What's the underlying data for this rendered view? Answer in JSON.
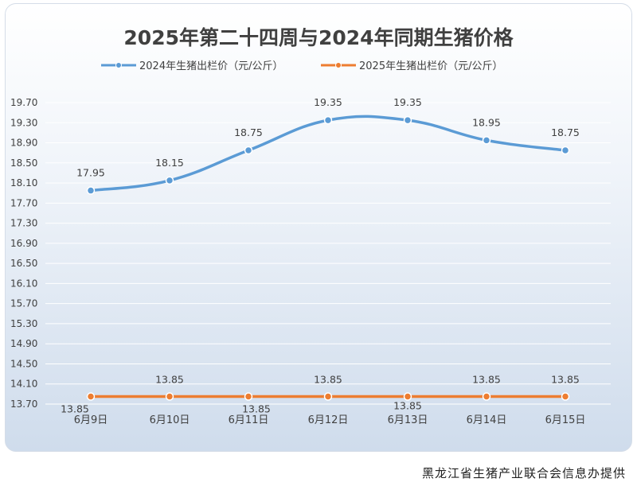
{
  "chart_data": {
    "type": "line",
    "title": "2025年第二十四周与2024年同期生猪价格",
    "categories": [
      "6月9日",
      "6月10日",
      "6月11日",
      "6月12日",
      "6月13日",
      "6月14日",
      "6月15日"
    ],
    "series": [
      {
        "name": "2024年生猪出栏价（元/公斤）",
        "color": "#5b9bd5",
        "values": [
          17.95,
          18.15,
          18.75,
          19.35,
          19.35,
          18.95,
          18.75
        ],
        "labels": [
          "17.95",
          "18.15",
          "18.75",
          "19.35",
          "19.35",
          "18.95",
          "18.75"
        ]
      },
      {
        "name": "2025年生猪出栏价（元/公斤）",
        "color": "#ed7d31",
        "values": [
          13.85,
          13.85,
          13.85,
          13.85,
          13.85,
          13.85,
          13.85
        ],
        "labels": [
          "13.85",
          "13.85",
          "13.85",
          "13.85",
          "13.85",
          "13.85",
          "13.85"
        ]
      }
    ],
    "yticks": [
      "19.70",
      "19.30",
      "18.90",
      "18.50",
      "18.10",
      "17.70",
      "17.30",
      "16.90",
      "16.50",
      "16.10",
      "15.70",
      "15.30",
      "14.90",
      "14.50",
      "14.10",
      "13.70"
    ],
    "ylim": [
      13.7,
      19.7
    ],
    "ystep": 0.4,
    "xlabel": "",
    "ylabel": "",
    "legend_position": "top"
  },
  "footer": {
    "source": "黑龙江省生猪产业联合会信息办提供"
  }
}
